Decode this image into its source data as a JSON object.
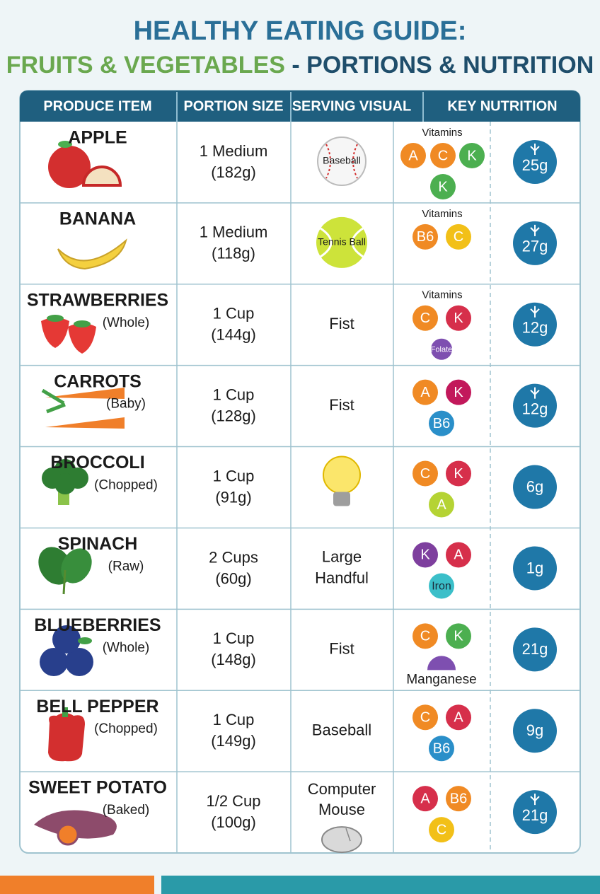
{
  "header": {
    "title_line1": "HEALTHY EATING GUIDE:",
    "title_line2_green": "FRUITS & VEGETABLES",
    "title_line2_blue": " - PORTIONS & NUTRITION"
  },
  "table": {
    "columns": [
      "PRODUCE ITEM",
      "PORTION SIZE",
      "SERVING VISUAL",
      "KEY NUTRITION"
    ],
    "rows": [
      {
        "item": "APPLE",
        "note": null,
        "portion": [
          "1 Medium",
          "(182g)"
        ],
        "visual": {
          "icon": "baseball",
          "text": [
            "Baseball"
          ]
        },
        "vitamins_label": "Vitamins",
        "vitamins": [
          {
            "label": "A",
            "color": "#f08a24"
          },
          {
            "label": "C",
            "color": "#f08a24"
          },
          {
            "label": "K",
            "color": "#4caf50"
          },
          {
            "label": "K",
            "color": "#4caf50"
          }
        ],
        "fiber": "25g",
        "wheat": true
      },
      {
        "item": "BANANA",
        "note": null,
        "portion": [
          "1 Medium",
          "(118g)"
        ],
        "visual": {
          "icon": "tennis",
          "text": [
            "Tennis Ball"
          ]
        },
        "vitamins_label": "Vitamins",
        "vitamins": [
          {
            "label": "B6",
            "color": "#f08a24"
          },
          {
            "label": "C",
            "color": "#f2c018"
          }
        ],
        "fiber": "27g",
        "wheat": true
      },
      {
        "item": "STRAWBERRIES",
        "note": "(Whole)",
        "portion": [
          "1 Cup",
          "(144g)"
        ],
        "visual": {
          "icon": null,
          "text": [
            "Fist"
          ]
        },
        "vitamins_label": "Vitamins",
        "vitamins": [
          {
            "label": "C",
            "color": "#f08a24"
          },
          {
            "label": "K",
            "color": "#d62f4b"
          },
          {
            "label": "Folate",
            "color": "#7e4fb0",
            "shape": "small"
          }
        ],
        "fiber": "12g",
        "wheat": true
      },
      {
        "item": "CARROTS",
        "note": "(Baby)",
        "portion": [
          "1 Cup",
          "(128g)"
        ],
        "visual": {
          "icon": null,
          "text": [
            "Fist"
          ]
        },
        "vitamins_label": null,
        "vitamins": [
          {
            "label": "A",
            "color": "#f08a24"
          },
          {
            "label": "K",
            "color": "#c2185b"
          },
          {
            "label": "B6",
            "color": "#2a8fc9"
          }
        ],
        "fiber": "12g",
        "wheat": true
      },
      {
        "item": "BROCCOLI",
        "note": "(Chopped)",
        "portion": [
          "1 Cup",
          "(91g)"
        ],
        "visual": {
          "icon": "bulb",
          "text": []
        },
        "vitamins_label": null,
        "vitamins": [
          {
            "label": "C",
            "color": "#f08a24"
          },
          {
            "label": "K",
            "color": "#d62f4b"
          },
          {
            "label": "A",
            "color": "#b5d334"
          }
        ],
        "fiber": "6g",
        "wheat": false
      },
      {
        "item": "SPINACH",
        "note": "(Raw)",
        "portion": [
          "2 Cups",
          "(60g)"
        ],
        "visual": {
          "icon": null,
          "text": [
            "Large",
            "Handful"
          ]
        },
        "vitamins_label": null,
        "vitamins": [
          {
            "label": "K",
            "color": "#7e3f9e"
          },
          {
            "label": "A",
            "color": "#d62f4b"
          },
          {
            "label": "Iron",
            "color": "#3bbfc9",
            "text_color": "#1a2a3a"
          }
        ],
        "fiber": "1g",
        "wheat": false
      },
      {
        "item": "BLUEBERRIES",
        "note": "(Whole)",
        "portion": [
          "1 Cup",
          "(148g)"
        ],
        "visual": {
          "icon": null,
          "text": [
            "Fist"
          ]
        },
        "vitamins_label": null,
        "vitamins": [
          {
            "label": "C",
            "color": "#f08a24"
          },
          {
            "label": "K",
            "color": "#4caf50"
          },
          {
            "label": "Manganese",
            "color": "#7e4fb0",
            "shape": "half"
          }
        ],
        "fiber": "21g",
        "wheat": false
      },
      {
        "item": "BELL PEPPER",
        "note": "(Chopped)",
        "portion": [
          "1 Cup",
          "(149g)"
        ],
        "visual": {
          "icon": null,
          "text": [
            "Baseball"
          ]
        },
        "vitamins_label": null,
        "vitamins": [
          {
            "label": "C",
            "color": "#f08a24"
          },
          {
            "label": "A",
            "color": "#d62f4b"
          },
          {
            "label": "B6",
            "color": "#2a8fc9"
          }
        ],
        "fiber": "9g",
        "wheat": false
      },
      {
        "item": "SWEET POTATO",
        "note": "(Baked)",
        "portion": [
          "1/2 Cup",
          "(100g)"
        ],
        "visual": {
          "icon": "mouse",
          "text": [
            "Computer",
            "Mouse"
          ]
        },
        "vitamins_label": null,
        "vitamins": [
          {
            "label": "A",
            "color": "#d62f4b"
          },
          {
            "label": "B6",
            "color": "#f08a24"
          },
          {
            "label": "C",
            "color": "#f2c018"
          }
        ],
        "fiber": "21g",
        "wheat": true
      }
    ]
  }
}
